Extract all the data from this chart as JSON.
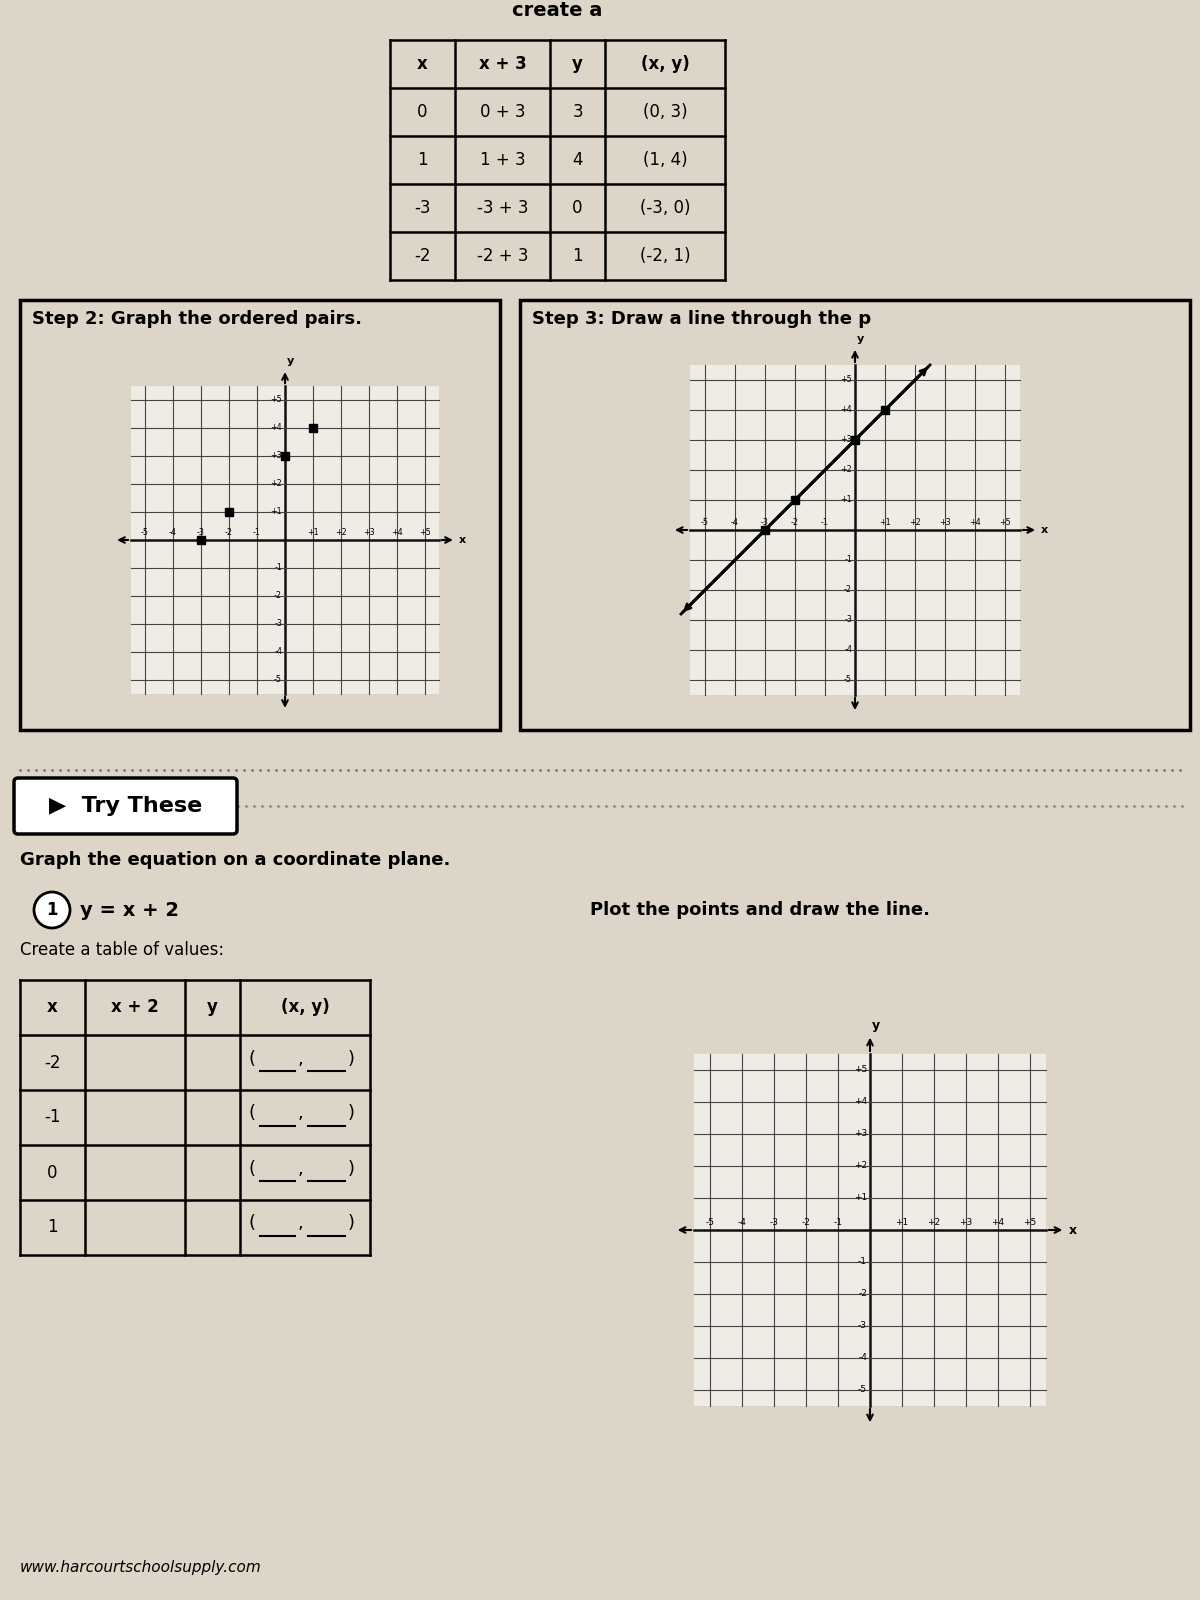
{
  "bg_color": "#e8e2d8",
  "table_title": "create a",
  "table_headers": [
    "x",
    "x + 3",
    "y",
    "(x, y)"
  ],
  "table_rows": [
    [
      "0",
      "0 + 3",
      "3",
      "(0, 3)"
    ],
    [
      "1",
      "1 + 3",
      "4",
      "(1, 4)"
    ],
    [
      "-3",
      "-3 + 3",
      "0",
      "(-3, 0)"
    ],
    [
      "-2",
      "-2 + 3",
      "1",
      "(-2, 1)"
    ]
  ],
  "step2_title": "Step 2: Graph the ordered pairs.",
  "step3_title": "Step 3: Draw a line through the p",
  "step2_points": [
    [
      0,
      3
    ],
    [
      1,
      4
    ],
    [
      -3,
      0
    ],
    [
      -2,
      1
    ]
  ],
  "step3_points": [
    [
      0,
      3
    ],
    [
      1,
      4
    ],
    [
      -3,
      0
    ],
    [
      -2,
      1
    ]
  ],
  "try_these_title": "Try These",
  "try_these_subtitle": "Graph the equation on a coordinate plane.",
  "problem_num": "1",
  "equation": "y = x + 2",
  "table2_title": "Create a table of values:",
  "table2_headers": [
    "x",
    "x + 2",
    "y",
    "(x, y)"
  ],
  "table2_x_vals": [
    "-2",
    "-1",
    "0",
    "1"
  ],
  "plot_title": "Plot the points and draw the line.",
  "website": "www.harcourtschoolsupply.com"
}
